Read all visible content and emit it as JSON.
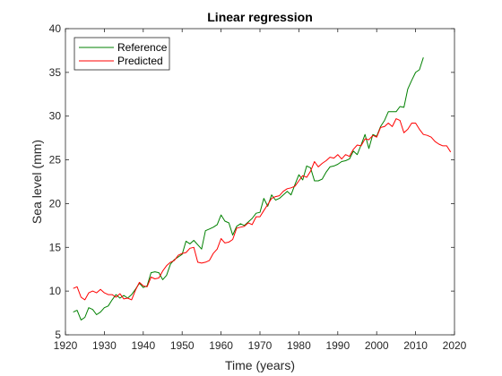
{
  "chart_data": {
    "type": "line",
    "title": "Linear regression",
    "xlabel": "Time (years)",
    "ylabel": "Sea level (mm)",
    "xlim": [
      1920,
      2020
    ],
    "ylim": [
      5,
      40
    ],
    "xticks": [
      1920,
      1930,
      1940,
      1950,
      1960,
      1970,
      1980,
      1990,
      2000,
      2010,
      2020
    ],
    "yticks": [
      5,
      10,
      15,
      20,
      25,
      30,
      35,
      40
    ],
    "grid": false,
    "legend_position": "top-left",
    "series": [
      {
        "name": "Reference",
        "color": "#008000",
        "points": [
          [
            1922,
            7.6
          ],
          [
            1923,
            7.8
          ],
          [
            1924,
            6.7
          ],
          [
            1925,
            7.0
          ],
          [
            1926,
            8.1
          ],
          [
            1927,
            7.9
          ],
          [
            1928,
            7.3
          ],
          [
            1929,
            7.6
          ],
          [
            1930,
            8.1
          ],
          [
            1931,
            8.3
          ],
          [
            1932,
            9.0
          ],
          [
            1933,
            9.6
          ],
          [
            1934,
            9.2
          ],
          [
            1935,
            9.5
          ],
          [
            1936,
            9.2
          ],
          [
            1937,
            9.6
          ],
          [
            1938,
            10.2
          ],
          [
            1939,
            10.9
          ],
          [
            1940,
            10.4
          ],
          [
            1941,
            10.6
          ],
          [
            1942,
            12.1
          ],
          [
            1943,
            12.2
          ],
          [
            1944,
            12.1
          ],
          [
            1945,
            11.3
          ],
          [
            1946,
            11.8
          ],
          [
            1947,
            13.1
          ],
          [
            1948,
            13.6
          ],
          [
            1949,
            13.9
          ],
          [
            1950,
            14.2
          ],
          [
            1951,
            15.7
          ],
          [
            1952,
            15.4
          ],
          [
            1953,
            15.8
          ],
          [
            1954,
            15.3
          ],
          [
            1955,
            14.8
          ],
          [
            1956,
            16.9
          ],
          [
            1957,
            17.1
          ],
          [
            1958,
            17.3
          ],
          [
            1959,
            17.6
          ],
          [
            1960,
            18.7
          ],
          [
            1961,
            18.0
          ],
          [
            1962,
            17.8
          ],
          [
            1963,
            16.4
          ],
          [
            1964,
            17.4
          ],
          [
            1965,
            17.7
          ],
          [
            1966,
            17.5
          ],
          [
            1967,
            17.9
          ],
          [
            1968,
            18.3
          ],
          [
            1969,
            18.9
          ],
          [
            1970,
            19.0
          ],
          [
            1971,
            20.6
          ],
          [
            1972,
            19.7
          ],
          [
            1973,
            21.0
          ],
          [
            1974,
            20.4
          ],
          [
            1975,
            20.6
          ],
          [
            1976,
            21.0
          ],
          [
            1977,
            21.4
          ],
          [
            1978,
            21.0
          ],
          [
            1979,
            22.2
          ],
          [
            1980,
            23.3
          ],
          [
            1981,
            22.7
          ],
          [
            1982,
            24.3
          ],
          [
            1983,
            24.1
          ],
          [
            1984,
            22.6
          ],
          [
            1985,
            22.6
          ],
          [
            1986,
            22.8
          ],
          [
            1987,
            23.6
          ],
          [
            1988,
            24.2
          ],
          [
            1989,
            24.3
          ],
          [
            1990,
            24.5
          ],
          [
            1991,
            24.8
          ],
          [
            1992,
            24.9
          ],
          [
            1993,
            25.1
          ],
          [
            1994,
            26.0
          ],
          [
            1995,
            25.6
          ],
          [
            1996,
            26.7
          ],
          [
            1997,
            27.9
          ],
          [
            1998,
            26.3
          ],
          [
            1999,
            27.9
          ],
          [
            2000,
            27.7
          ],
          [
            2001,
            28.8
          ],
          [
            2002,
            29.5
          ],
          [
            2003,
            30.5
          ],
          [
            2004,
            30.5
          ],
          [
            2005,
            30.5
          ],
          [
            2006,
            31.1
          ],
          [
            2007,
            31.0
          ],
          [
            2008,
            33.1
          ],
          [
            2009,
            34.1
          ],
          [
            2010,
            35.0
          ],
          [
            2011,
            35.3
          ],
          [
            2012,
            36.7
          ]
        ]
      },
      {
        "name": "Predicted",
        "color": "#ff0000",
        "points": [
          [
            1922,
            10.3
          ],
          [
            1923,
            10.5
          ],
          [
            1924,
            9.3
          ],
          [
            1925,
            9.0
          ],
          [
            1926,
            9.8
          ],
          [
            1927,
            10.0
          ],
          [
            1928,
            9.8
          ],
          [
            1929,
            10.2
          ],
          [
            1930,
            9.8
          ],
          [
            1931,
            9.6
          ],
          [
            1932,
            9.6
          ],
          [
            1933,
            9.3
          ],
          [
            1934,
            9.7
          ],
          [
            1935,
            9.1
          ],
          [
            1936,
            9.2
          ],
          [
            1937,
            9.0
          ],
          [
            1938,
            10.1
          ],
          [
            1939,
            11.0
          ],
          [
            1940,
            10.6
          ],
          [
            1941,
            10.5
          ],
          [
            1942,
            11.6
          ],
          [
            1943,
            11.4
          ],
          [
            1944,
            11.5
          ],
          [
            1945,
            12.3
          ],
          [
            1946,
            12.9
          ],
          [
            1947,
            13.3
          ],
          [
            1948,
            13.5
          ],
          [
            1949,
            14.1
          ],
          [
            1950,
            14.3
          ],
          [
            1951,
            14.4
          ],
          [
            1952,
            14.9
          ],
          [
            1953,
            15.0
          ],
          [
            1954,
            13.3
          ],
          [
            1955,
            13.2
          ],
          [
            1956,
            13.3
          ],
          [
            1957,
            13.5
          ],
          [
            1958,
            14.3
          ],
          [
            1959,
            14.8
          ],
          [
            1960,
            16.0
          ],
          [
            1961,
            15.5
          ],
          [
            1962,
            15.6
          ],
          [
            1963,
            15.9
          ],
          [
            1964,
            17.2
          ],
          [
            1965,
            17.3
          ],
          [
            1966,
            17.4
          ],
          [
            1967,
            17.8
          ],
          [
            1968,
            17.6
          ],
          [
            1969,
            18.5
          ],
          [
            1970,
            18.5
          ],
          [
            1971,
            19.2
          ],
          [
            1972,
            19.9
          ],
          [
            1973,
            20.6
          ],
          [
            1974,
            20.8
          ],
          [
            1975,
            20.9
          ],
          [
            1976,
            21.4
          ],
          [
            1977,
            21.7
          ],
          [
            1978,
            21.8
          ],
          [
            1979,
            22.0
          ],
          [
            1980,
            22.6
          ],
          [
            1981,
            23.2
          ],
          [
            1982,
            23.0
          ],
          [
            1983,
            23.7
          ],
          [
            1984,
            24.8
          ],
          [
            1985,
            24.2
          ],
          [
            1986,
            24.6
          ],
          [
            1987,
            24.9
          ],
          [
            1988,
            25.3
          ],
          [
            1989,
            25.2
          ],
          [
            1990,
            25.6
          ],
          [
            1991,
            25.1
          ],
          [
            1992,
            25.6
          ],
          [
            1993,
            25.4
          ],
          [
            1994,
            26.2
          ],
          [
            1995,
            26.7
          ],
          [
            1996,
            26.6
          ],
          [
            1997,
            27.4
          ],
          [
            1998,
            27.3
          ],
          [
            1999,
            27.8
          ],
          [
            2000,
            27.6
          ],
          [
            2001,
            28.7
          ],
          [
            2002,
            28.8
          ],
          [
            2003,
            29.2
          ],
          [
            2004,
            28.8
          ],
          [
            2005,
            29.7
          ],
          [
            2006,
            29.5
          ],
          [
            2007,
            28.1
          ],
          [
            2008,
            28.5
          ],
          [
            2009,
            29.2
          ],
          [
            2010,
            29.2
          ],
          [
            2011,
            28.5
          ],
          [
            2012,
            27.9
          ],
          [
            2013,
            27.8
          ],
          [
            2014,
            27.6
          ],
          [
            2015,
            27.1
          ],
          [
            2016,
            26.8
          ],
          [
            2017,
            26.6
          ],
          [
            2018,
            26.6
          ],
          [
            2019,
            25.9
          ]
        ]
      }
    ]
  }
}
